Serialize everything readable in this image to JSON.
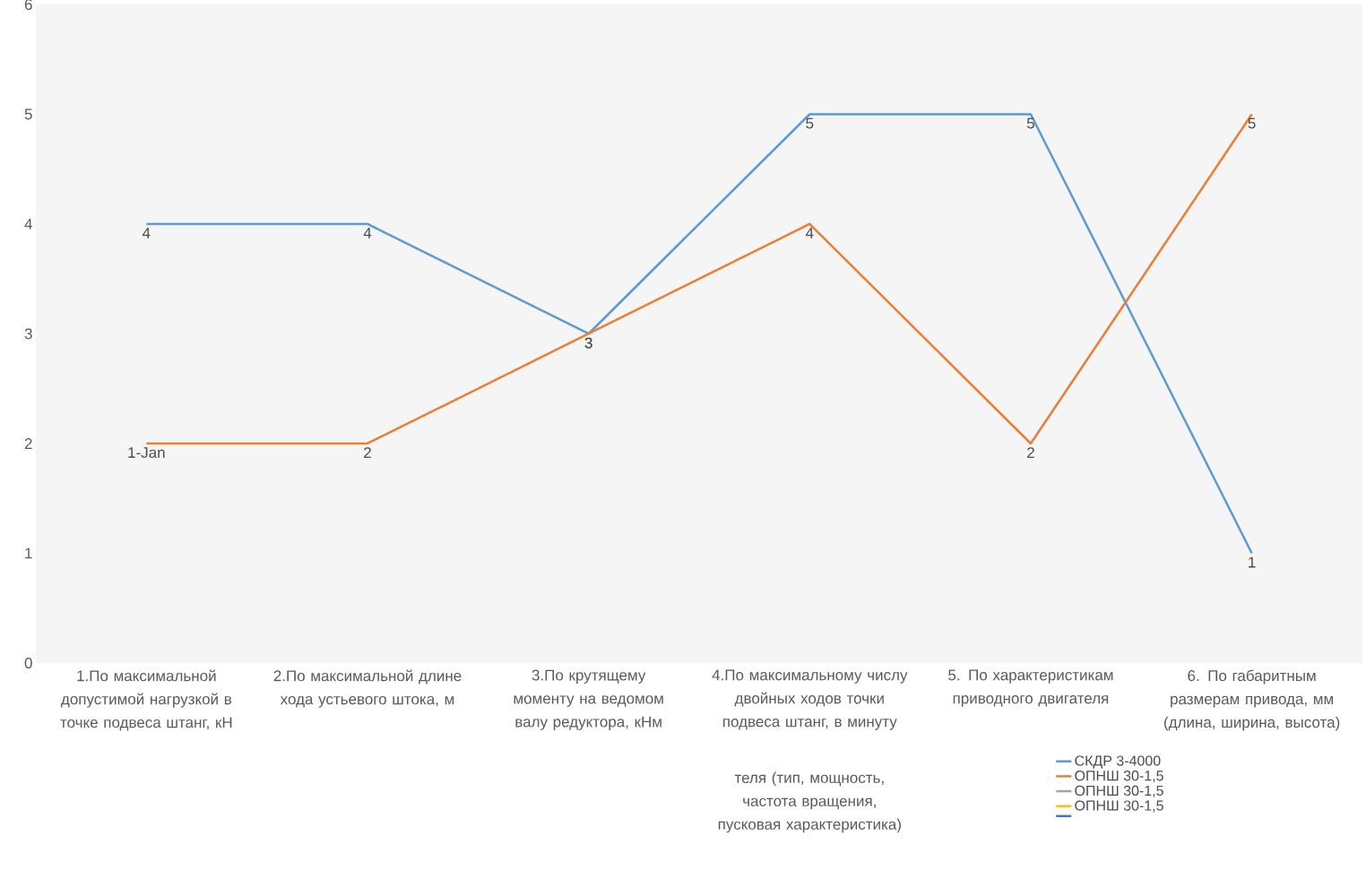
{
  "chart_data": {
    "type": "line",
    "categories": [
      "1.По максимальной допустимой нагрузкой в точке подвеса штанг, кН",
      "2.По максимальной длине хода устьевого штока, м",
      "3.По крутящему моменту на ведомом валу редуктора, кНм",
      "4.По максимальному числу двойных ходов точки подвеса штанг, в минуту",
      "5. По характеристикам приводного двигателя",
      "6. По габаритным размерам привода, мм (длина, ширина, высота)"
    ],
    "series": [
      {
        "name": "СКДР 3-4000",
        "color": "#5b9bd5",
        "values": [
          4,
          4,
          3,
          5,
          5,
          1
        ],
        "value_labels": [
          "4",
          "4",
          "3",
          "5",
          "5",
          "1"
        ]
      },
      {
        "name": "ОПНШ 30-1,5",
        "color": "#ed7d31",
        "values": [
          2,
          2,
          3,
          4,
          2,
          5
        ],
        "value_labels": [
          "1-Jan",
          "2",
          "3",
          "4",
          "2",
          "5"
        ]
      },
      {
        "name": "ОПНШ 30-1,5",
        "color": "#a5a5a5",
        "values": [
          null,
          null,
          null,
          null,
          null,
          null
        ]
      },
      {
        "name": "ОПНШ 30-1,5",
        "color": "#ffc000",
        "values": [
          null,
          null,
          null,
          null,
          null,
          null
        ]
      },
      {
        "color": "#4472c4",
        "values": [
          null,
          null,
          null,
          null,
          null,
          null
        ]
      }
    ],
    "annotations": [
      "теля (тип, мощность, частота вращения, пусковая характеристика)"
    ],
    "ylim": [
      0,
      6
    ],
    "yticks": [
      0,
      1,
      2,
      3,
      4,
      5,
      6
    ],
    "grid": false,
    "legend": "bottom",
    "marker": "none",
    "line_style": "solid"
  }
}
